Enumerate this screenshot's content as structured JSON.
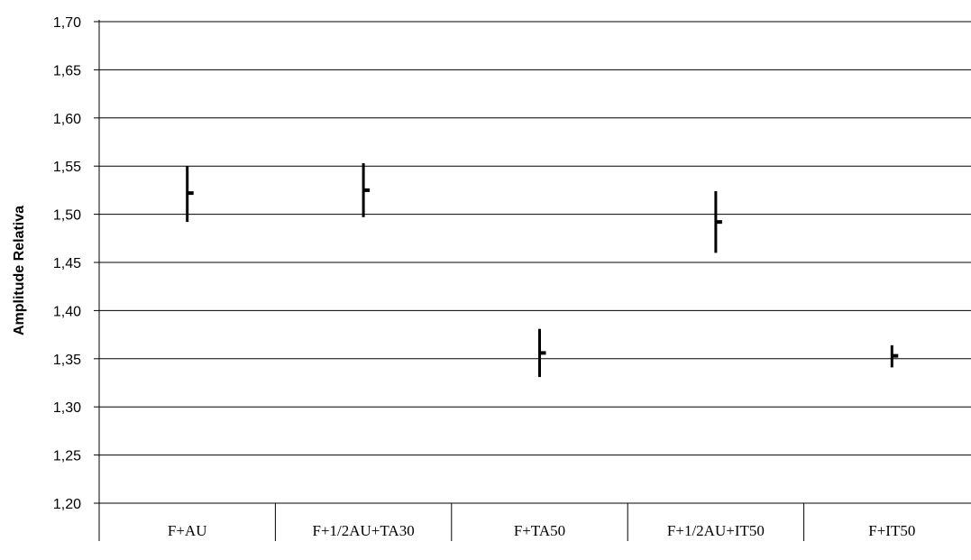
{
  "chart_data": {
    "type": "hi-lo-close",
    "title": "",
    "xlabel": "",
    "ylabel": "Amplitude Relativa",
    "categories": [
      "F+AU",
      "F+1/2AU+TA30",
      "F+TA50",
      "F+1/2AU+IT50",
      "F+IT50"
    ],
    "high": [
      1.55,
      1.553,
      1.381,
      1.524,
      1.364
    ],
    "low": [
      1.492,
      1.497,
      1.331,
      1.46,
      1.341
    ],
    "close": [
      1.522,
      1.525,
      1.356,
      1.492,
      1.353
    ],
    "ylim": [
      1.2,
      1.7
    ],
    "ytick_labels": [
      "1,20",
      "1,25",
      "1,30",
      "1,35",
      "1,40",
      "1,45",
      "1,50",
      "1,55",
      "1,60",
      "1,65",
      "1,70"
    ],
    "grid": true,
    "legend": "none"
  }
}
